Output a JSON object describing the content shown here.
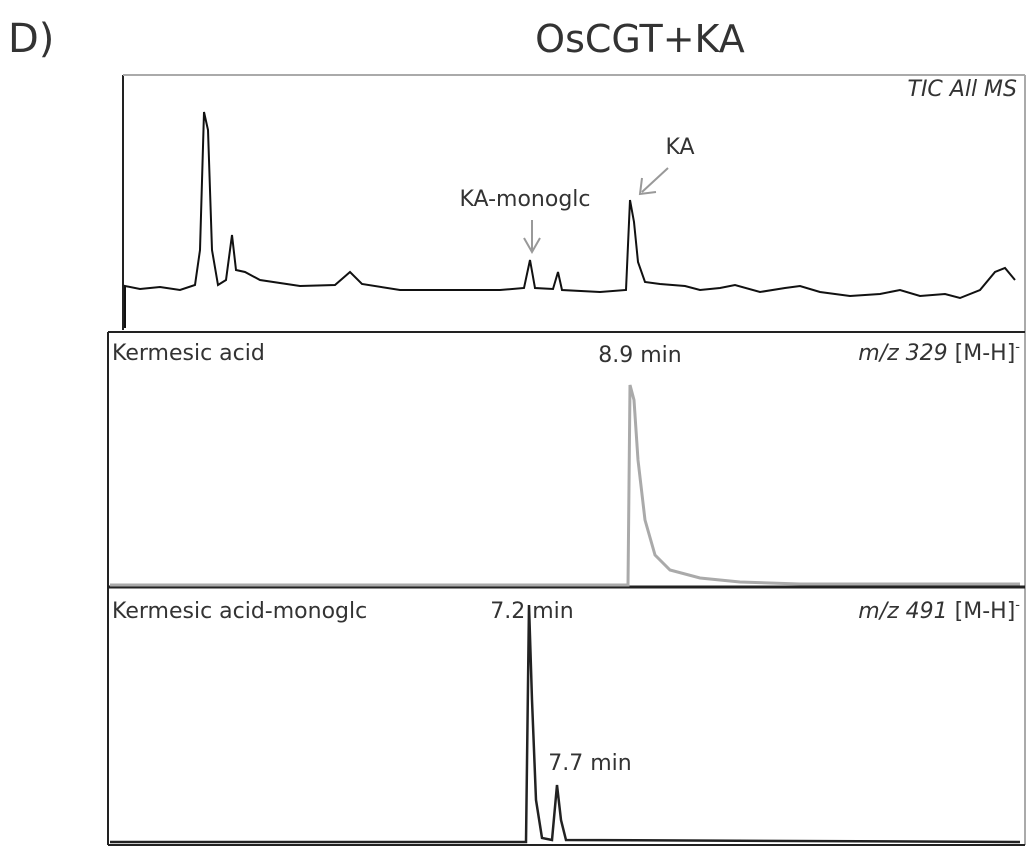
{
  "figure": {
    "panel_label": "D)",
    "title": "OsCGT+KA",
    "panels": [
      {
        "trace_label": "TIC All MS",
        "annotations": [
          "KA-monoglc",
          "KA"
        ]
      },
      {
        "compound": "Kermesic acid",
        "peak_label": "8.9 min",
        "mz": "m/z 329",
        "ion": "[M-H]",
        "charge": "-"
      },
      {
        "compound": "Kermesic acid-monoglc",
        "peak_labels": [
          "7.2 min",
          "7.7 min"
        ],
        "mz": "m/z 491",
        "ion": "[M-H]",
        "charge": "-"
      }
    ]
  }
}
